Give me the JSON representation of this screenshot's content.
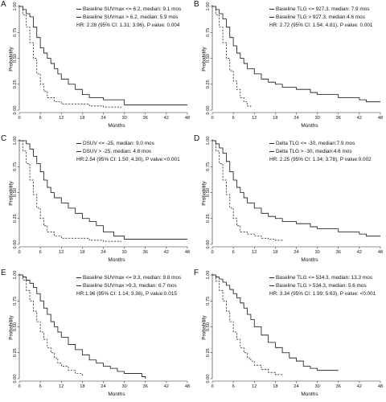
{
  "chart_data": [
    {
      "type": "line",
      "panel_label": "A",
      "xlabel": "Months",
      "ylabel": "Probability",
      "xlim": [
        0,
        48
      ],
      "ylim": [
        0,
        1
      ],
      "xticks": [
        "0",
        "6",
        "12",
        "18",
        "24",
        "30",
        "36",
        "42",
        "48"
      ],
      "yticks": [
        "0.00",
        "0.25",
        "0.50",
        "0.75",
        "1.00"
      ],
      "legend": [
        "Baseline SUVmax <= 6.2, median: 9.1 mos",
        "Baseline SUVmax > 6.2, median: 5.9 mos"
      ],
      "hr_text": "HR: 2.28 (95% CI: 1.31; 3.96), P value: 0.004",
      "series": [
        {
          "style": "solid",
          "x": [
            0,
            1,
            2,
            3,
            4,
            5,
            6,
            7,
            8,
            9,
            10,
            11,
            12,
            14,
            16,
            18,
            20,
            24,
            30,
            48
          ],
          "y": [
            1,
            0.97,
            0.93,
            0.9,
            0.8,
            0.7,
            0.6,
            0.55,
            0.5,
            0.45,
            0.4,
            0.35,
            0.3,
            0.25,
            0.2,
            0.15,
            0.12,
            0.1,
            0.05,
            0.05
          ]
        },
        {
          "style": "dashed",
          "x": [
            0,
            1,
            2,
            3,
            4,
            5,
            6,
            7,
            8,
            10,
            12,
            16,
            20,
            24,
            29
          ],
          "y": [
            1,
            0.92,
            0.8,
            0.65,
            0.5,
            0.35,
            0.25,
            0.18,
            0.12,
            0.08,
            0.06,
            0.06,
            0.04,
            0.03,
            0.02
          ]
        }
      ]
    },
    {
      "type": "line",
      "panel_label": "B",
      "xlabel": "Months",
      "ylabel": "Probability",
      "xlim": [
        0,
        48
      ],
      "ylim": [
        0,
        1
      ],
      "xticks": [
        "0",
        "6",
        "12",
        "18",
        "24",
        "30",
        "36",
        "42",
        "48"
      ],
      "yticks": [
        "0.00",
        "0.25",
        "0.50",
        "0.75",
        "1.00"
      ],
      "legend": [
        "Baseline TLG <= 927.3, median: 7.9 mos",
        "Baseline TLG > 927.3, median:4.6 mos"
      ],
      "hr_text": "HR: 2.72 (95% CI: 1.54; 4.81), P value: 0.001",
      "series": [
        {
          "style": "solid",
          "x": [
            0,
            1,
            2,
            3,
            4,
            5,
            6,
            7,
            8,
            9,
            10,
            12,
            14,
            16,
            18,
            20,
            24,
            28,
            30,
            36,
            42,
            44,
            48
          ],
          "y": [
            1,
            0.97,
            0.93,
            0.88,
            0.8,
            0.7,
            0.62,
            0.55,
            0.5,
            0.45,
            0.4,
            0.35,
            0.3,
            0.27,
            0.25,
            0.22,
            0.2,
            0.17,
            0.15,
            0.12,
            0.1,
            0.08,
            0.08
          ]
        },
        {
          "style": "dashed",
          "x": [
            0,
            1,
            2,
            3,
            4,
            5,
            6,
            7,
            8,
            9,
            10,
            11
          ],
          "y": [
            1,
            0.92,
            0.8,
            0.65,
            0.5,
            0.38,
            0.28,
            0.2,
            0.12,
            0.08,
            0.04,
            0.02
          ]
        }
      ]
    },
    {
      "type": "line",
      "panel_label": "C",
      "xlabel": "Months",
      "ylabel": "Probability",
      "xlim": [
        0,
        48
      ],
      "ylim": [
        0,
        1
      ],
      "xticks": [
        "0",
        "6",
        "12",
        "18",
        "24",
        "30",
        "36",
        "42",
        "48"
      ],
      "yticks": [
        "0.00",
        "0.25",
        "0.50",
        "0.75",
        "1.00"
      ],
      "legend": [
        "DSUV <= -25, median: 9.0 mos",
        "DSUV > -25, median: 4.8 mos"
      ],
      "hr_text": "HR:2.54 (95% CI: 1.50; 4.30), P value:<0.001",
      "series": [
        {
          "style": "solid",
          "x": [
            0,
            1,
            2,
            3,
            4,
            5,
            6,
            7,
            8,
            9,
            10,
            12,
            14,
            16,
            18,
            20,
            22,
            24,
            27,
            30,
            36,
            48
          ],
          "y": [
            1,
            1,
            0.97,
            0.92,
            0.85,
            0.78,
            0.7,
            0.62,
            0.55,
            0.5,
            0.45,
            0.4,
            0.35,
            0.3,
            0.25,
            0.22,
            0.18,
            0.12,
            0.08,
            0.05,
            0.05,
            0.05
          ]
        },
        {
          "style": "dashed",
          "x": [
            0,
            1,
            2,
            3,
            4,
            5,
            6,
            7,
            8,
            10,
            12,
            16,
            20,
            24,
            29
          ],
          "y": [
            1,
            0.9,
            0.78,
            0.62,
            0.48,
            0.35,
            0.25,
            0.18,
            0.12,
            0.08,
            0.06,
            0.06,
            0.04,
            0.03,
            0.02
          ]
        }
      ]
    },
    {
      "type": "line",
      "panel_label": "D",
      "xlabel": "Months",
      "ylabel": "Probability",
      "xlim": [
        0,
        48
      ],
      "ylim": [
        0,
        1
      ],
      "xticks": [
        "0",
        "6",
        "12",
        "18",
        "24",
        "30",
        "36",
        "42",
        "48"
      ],
      "yticks": [
        "0.00",
        "0.25",
        "0.50",
        "0.75",
        "1.00"
      ],
      "legend": [
        "Delta TLG <= -30, median:7.9 mos",
        "Delta TLG > -30, median:4.6 mos"
      ],
      "hr_text": "HR: 2.25 (95% CI: 1.34; 3.78), P value:0.002",
      "series": [
        {
          "style": "solid",
          "x": [
            0,
            1,
            2,
            3,
            4,
            5,
            6,
            7,
            8,
            9,
            10,
            12,
            14,
            16,
            18,
            20,
            24,
            28,
            30,
            36,
            42,
            44,
            48
          ],
          "y": [
            1,
            0.97,
            0.93,
            0.88,
            0.8,
            0.7,
            0.62,
            0.55,
            0.5,
            0.45,
            0.4,
            0.35,
            0.3,
            0.27,
            0.25,
            0.22,
            0.2,
            0.17,
            0.15,
            0.12,
            0.1,
            0.08,
            0.08
          ]
        },
        {
          "style": "dashed",
          "x": [
            0,
            1,
            2,
            3,
            4,
            5,
            6,
            7,
            8,
            10,
            12,
            14,
            16,
            18,
            20
          ],
          "y": [
            1,
            0.9,
            0.78,
            0.62,
            0.48,
            0.35,
            0.25,
            0.18,
            0.12,
            0.1,
            0.08,
            0.06,
            0.05,
            0.04,
            0.03
          ]
        }
      ]
    },
    {
      "type": "line",
      "panel_label": "E",
      "xlabel": "Months",
      "ylabel": "Probability",
      "xlim": [
        0,
        48
      ],
      "ylim": [
        0,
        1
      ],
      "xticks": [
        "0",
        "6",
        "12",
        "18",
        "24",
        "30",
        "36",
        "42",
        "48"
      ],
      "yticks": [
        "0.00",
        "0.25",
        "0.50",
        "0.75",
        "1.00"
      ],
      "legend": [
        "Baseline SUVmax <= 9.3, median: 9.8 mos",
        "Baseline SUVmax >9.3, median: 6.7 mos"
      ],
      "hr_text": "HR:1.96 (95% CI: 1.14; 3.36), P value:0.015",
      "series": [
        {
          "style": "solid",
          "x": [
            0,
            1,
            2,
            3,
            4,
            5,
            6,
            7,
            8,
            9,
            10,
            11,
            12,
            14,
            16,
            18,
            20,
            22,
            24,
            26,
            28,
            30,
            34,
            35,
            36
          ],
          "y": [
            1,
            0.98,
            0.95,
            0.92,
            0.88,
            0.82,
            0.75,
            0.68,
            0.62,
            0.55,
            0.5,
            0.45,
            0.4,
            0.33,
            0.28,
            0.23,
            0.18,
            0.15,
            0.12,
            0.1,
            0.07,
            0.05,
            0.05,
            0.02,
            0
          ]
        },
        {
          "style": "dashed",
          "x": [
            0,
            1,
            2,
            3,
            4,
            5,
            6,
            7,
            8,
            9,
            10,
            11,
            12,
            14,
            16,
            18
          ],
          "y": [
            1,
            0.95,
            0.85,
            0.75,
            0.65,
            0.55,
            0.45,
            0.38,
            0.3,
            0.25,
            0.2,
            0.15,
            0.12,
            0.08,
            0.05,
            0.02
          ]
        }
      ]
    },
    {
      "type": "line",
      "panel_label": "F",
      "xlabel": "Months",
      "ylabel": "Probability",
      "xlim": [
        0,
        48
      ],
      "ylim": [
        0,
        1
      ],
      "xticks": [
        "0",
        "6",
        "12",
        "18",
        "24",
        "30",
        "36",
        "42",
        "48"
      ],
      "yticks": [
        "0.00",
        "0.25",
        "0.50",
        "0.75",
        "1.00"
      ],
      "legend": [
        "Baseline TLG <= 534.3, median: 13.3 mos",
        "Baseline TLG > 534.3, median: 5.6 mos"
      ],
      "hr_text": "HR: 3.34 (95% CI: 1.99; 5.63), P value: <0.001",
      "series": [
        {
          "style": "solid",
          "x": [
            0,
            1,
            2,
            3,
            4,
            5,
            6,
            7,
            8,
            9,
            10,
            11,
            12,
            14,
            16,
            18,
            20,
            22,
            24,
            26,
            28,
            30,
            36
          ],
          "y": [
            1,
            0.98,
            0.96,
            0.93,
            0.9,
            0.86,
            0.82,
            0.78,
            0.73,
            0.68,
            0.62,
            0.57,
            0.5,
            0.42,
            0.35,
            0.3,
            0.25,
            0.2,
            0.17,
            0.12,
            0.1,
            0.08,
            0.08
          ]
        },
        {
          "style": "dashed",
          "x": [
            0,
            1,
            2,
            3,
            4,
            5,
            6,
            7,
            8,
            9,
            10,
            11,
            12,
            14,
            16,
            18,
            20
          ],
          "y": [
            1,
            0.94,
            0.85,
            0.75,
            0.65,
            0.55,
            0.45,
            0.38,
            0.3,
            0.25,
            0.2,
            0.17,
            0.13,
            0.09,
            0.06,
            0.04,
            0.02
          ]
        }
      ]
    }
  ]
}
